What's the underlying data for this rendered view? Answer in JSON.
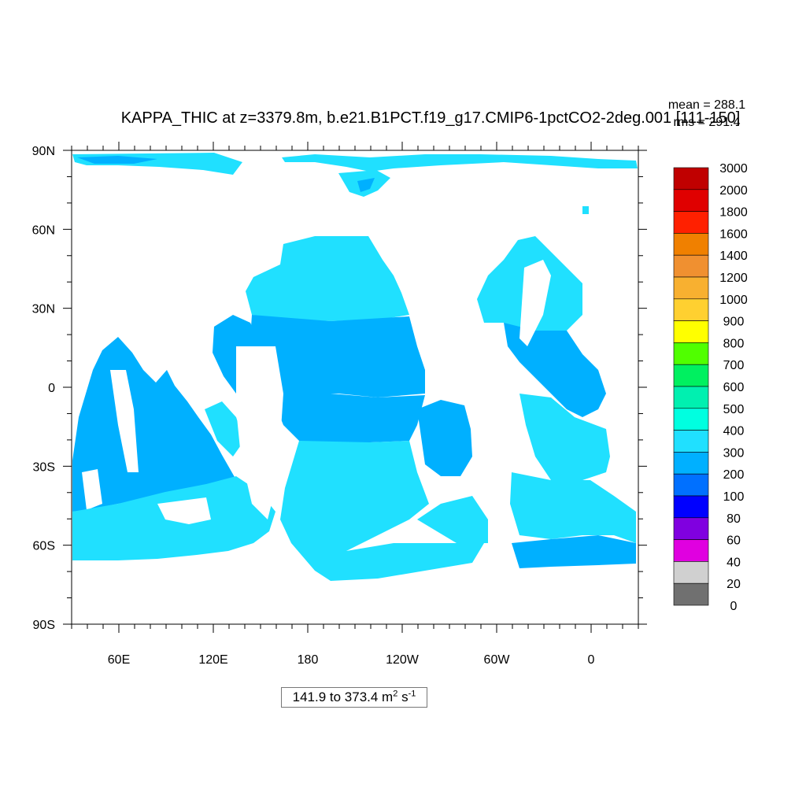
{
  "chart_data": {
    "type": "heatmap",
    "title": "KAPPA_THIC at z=3379.8m, b.e21.B1PCT.f19_g17.CMIP6-1pctCO2-2deg.001 [111-150]",
    "stats": {
      "mean": "mean = 288.1",
      "rms": "rms = 291.4"
    },
    "x_ticks": [
      "60E",
      "120E",
      "180",
      "120W",
      "60W",
      "0"
    ],
    "x_tick_lons": [
      60,
      120,
      180,
      240,
      300,
      360
    ],
    "x_range": [
      30,
      390
    ],
    "y_ticks": [
      "90N",
      "60N",
      "30N",
      "0",
      "30S",
      "60S",
      "90S"
    ],
    "y_tick_lats": [
      90,
      60,
      30,
      0,
      -30,
      -60,
      -90
    ],
    "y_range": [
      -90,
      90
    ],
    "colorbar": {
      "levels": [
        "3000",
        "2000",
        "1800",
        "1600",
        "1400",
        "1200",
        "1000",
        "900",
        "800",
        "700",
        "600",
        "500",
        "400",
        "300",
        "200",
        "100",
        "80",
        "60",
        "40",
        "20",
        "0"
      ],
      "colors": [
        "#c00000",
        "#e00000",
        "#ff2000",
        "#f08000",
        "#f09030",
        "#f8b030",
        "#ffd030",
        "#ffff00",
        "#50ff00",
        "#00f060",
        "#00f0b0",
        "#00ffe0",
        "#20e0ff",
        "#00b0ff",
        "#0070ff",
        "#0000ff",
        "#8000e0",
        "#e000e0",
        "#d0d0d0",
        "#707070"
      ]
    },
    "range_text": {
      "main": "141.9 to 373.4 m",
      "unit_exp1": "2",
      "unit_mid": " s",
      "unit_exp2": "-1"
    },
    "field_colors": {
      "band_300_400": "#20e0ff",
      "band_200_300": "#00b0ff",
      "band_100_200": "#0070ff"
    }
  }
}
